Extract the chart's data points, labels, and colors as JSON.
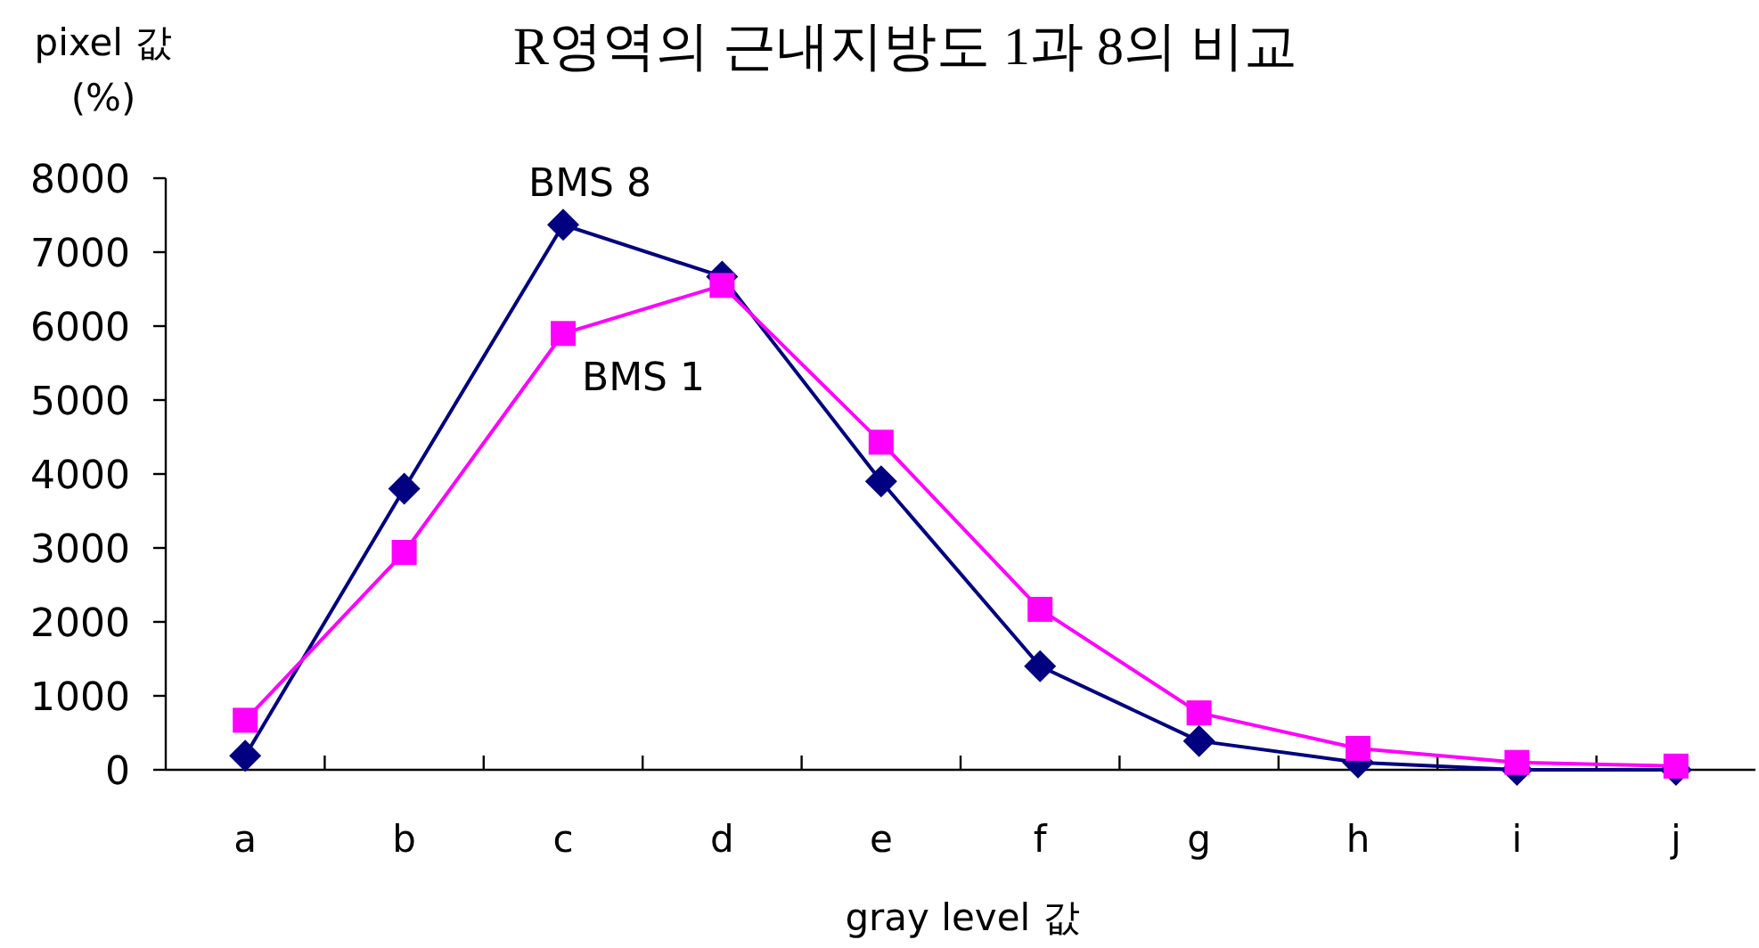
{
  "chart_data": {
    "type": "line",
    "title": "R영역의 근내지방도 1과 8의 비교",
    "xlabel": "gray level 값",
    "ylabel": "pixel 값 (%)",
    "categories": [
      "a",
      "b",
      "c",
      "d",
      "e",
      "f",
      "g",
      "h",
      "i",
      "j"
    ],
    "series": [
      {
        "name": "BMS 8",
        "color": "#000080",
        "marker": "diamond",
        "values": [
          190,
          3800,
          7370,
          6670,
          3900,
          1400,
          390,
          100,
          0,
          0
        ]
      },
      {
        "name": "BMS 1",
        "color": "#ff00ff",
        "marker": "square",
        "values": [
          670,
          2940,
          5900,
          6550,
          4430,
          2170,
          770,
          290,
          100,
          50
        ]
      }
    ],
    "ylim": [
      0,
      8000
    ],
    "yticks": [
      0,
      1000,
      2000,
      3000,
      4000,
      5000,
      6000,
      7000,
      8000
    ],
    "grid": false
  }
}
